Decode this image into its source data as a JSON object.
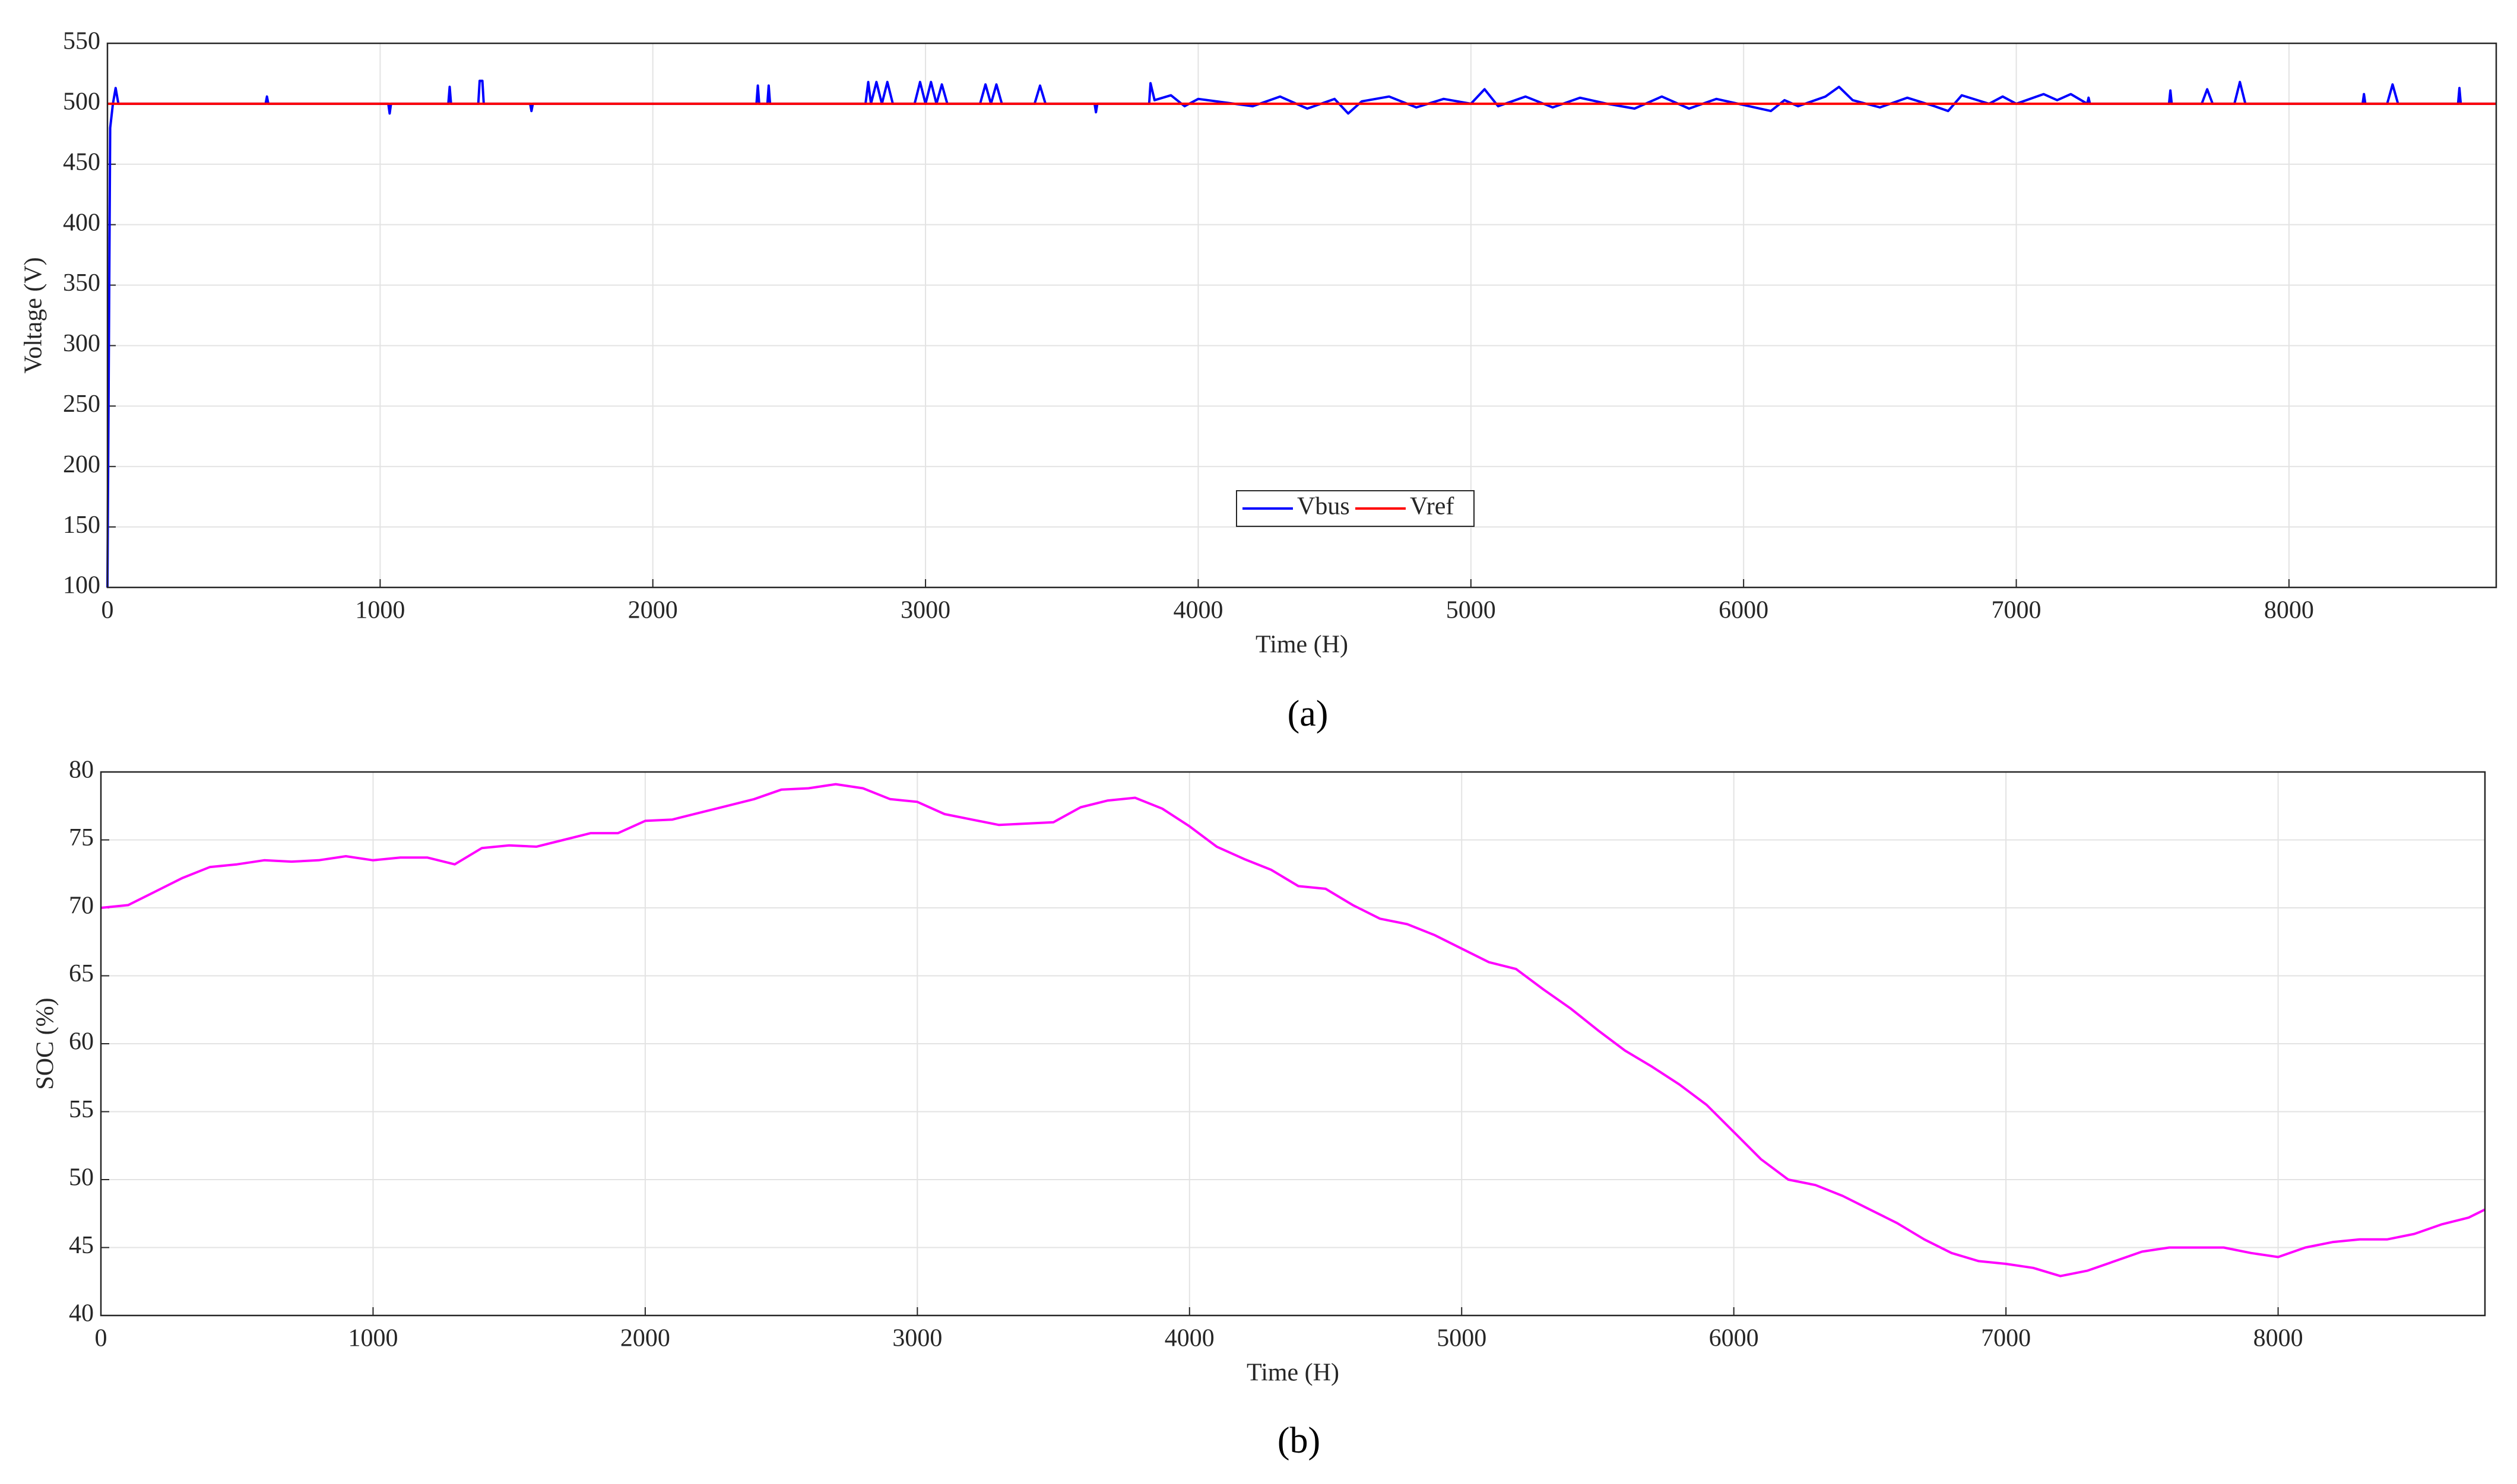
{
  "chart_data": [
    {
      "type": "line",
      "caption": "(a)",
      "xlabel": "Time (H)",
      "ylabel": "Voltage (V)",
      "xlim": [
        0,
        8760
      ],
      "ylim": [
        100,
        550
      ],
      "xticks": [
        0,
        1000,
        2000,
        3000,
        4000,
        5000,
        6000,
        7000,
        8000
      ],
      "yticks": [
        100,
        150,
        200,
        250,
        300,
        350,
        400,
        450,
        500,
        550
      ],
      "grid": true,
      "legend": "lower center",
      "series": [
        {
          "name": "Vbus",
          "color": "#0000ff",
          "x": [
            0,
            10,
            20,
            30,
            40,
            580,
            585,
            590,
            1030,
            1035,
            1040,
            1250,
            1255,
            1260,
            1360,
            1365,
            1375,
            1380,
            1550,
            1555,
            1560,
            2380,
            2385,
            2390,
            2420,
            2425,
            2430,
            2780,
            2790,
            2800,
            2820,
            2840,
            2860,
            2880,
            2960,
            2980,
            3000,
            3020,
            3040,
            3060,
            3080,
            3200,
            3220,
            3240,
            3260,
            3280,
            3400,
            3420,
            3440,
            3620,
            3625,
            3630,
            3820,
            3825,
            3840,
            3900,
            3950,
            4000,
            4100,
            4200,
            4300,
            4400,
            4500,
            4550,
            4600,
            4700,
            4800,
            4900,
            5000,
            5050,
            5100,
            5200,
            5300,
            5400,
            5500,
            5600,
            5700,
            5800,
            5900,
            6000,
            6100,
            6150,
            6200,
            6300,
            6350,
            6400,
            6500,
            6600,
            6700,
            6750,
            6800,
            6900,
            6950,
            7000,
            7100,
            7150,
            7200,
            7260,
            7265,
            7270,
            7560,
            7565,
            7570,
            7680,
            7700,
            7720,
            7800,
            7820,
            7840,
            8270,
            8275,
            8280,
            8360,
            8380,
            8400,
            8620,
            8625,
            8630,
            8760
          ],
          "values": [
            100,
            480,
            500,
            513,
            500,
            500,
            506,
            500,
            500,
            492,
            500,
            500,
            514,
            500,
            500,
            519,
            519,
            500,
            500,
            494,
            500,
            500,
            515,
            500,
            500,
            515,
            500,
            500,
            518,
            500,
            518,
            500,
            518,
            500,
            500,
            518,
            500,
            518,
            500,
            516,
            500,
            500,
            516,
            500,
            516,
            500,
            500,
            515,
            500,
            500,
            493,
            500,
            500,
            517,
            503,
            507,
            498,
            504,
            501,
            498,
            506,
            496,
            504,
            492,
            502,
            506,
            497,
            504,
            500,
            512,
            498,
            506,
            497,
            505,
            500,
            496,
            506,
            496,
            504,
            499,
            494,
            503,
            498,
            506,
            514,
            503,
            497,
            505,
            498,
            494,
            507,
            500,
            506,
            500,
            508,
            503,
            508,
            500,
            505,
            500,
            500,
            511,
            500,
            500,
            512,
            500,
            500,
            518,
            500,
            500,
            508,
            500,
            500,
            516,
            500,
            500,
            513,
            500,
            500
          ]
        },
        {
          "name": "Vref",
          "color": "#ff0000",
          "x": [
            0,
            8760
          ],
          "values": [
            500,
            500
          ]
        }
      ]
    },
    {
      "type": "line",
      "caption": "(b)",
      "xlabel": "Time (H)",
      "ylabel": "SOC (%)",
      "xlim": [
        0,
        8760
      ],
      "ylim": [
        40,
        80
      ],
      "xticks": [
        0,
        1000,
        2000,
        3000,
        4000,
        5000,
        6000,
        7000,
        8000
      ],
      "yticks": [
        40,
        45,
        50,
        55,
        60,
        65,
        70,
        75,
        80
      ],
      "grid": true,
      "series": [
        {
          "color": "#ff00ff",
          "x": [
            0,
            100,
            200,
            300,
            400,
            500,
            600,
            700,
            800,
            900,
            1000,
            1100,
            1200,
            1300,
            1400,
            1500,
            1600,
            1700,
            1800,
            1900,
            2000,
            2100,
            2200,
            2300,
            2400,
            2500,
            2600,
            2700,
            2800,
            2900,
            3000,
            3100,
            3200,
            3300,
            3400,
            3500,
            3600,
            3700,
            3800,
            3900,
            4000,
            4100,
            4200,
            4300,
            4400,
            4500,
            4600,
            4700,
            4800,
            4900,
            5000,
            5100,
            5200,
            5300,
            5400,
            5500,
            5600,
            5700,
            5800,
            5900,
            6000,
            6100,
            6200,
            6300,
            6400,
            6500,
            6600,
            6700,
            6800,
            6900,
            7000,
            7100,
            7200,
            7300,
            7400,
            7500,
            7600,
            7700,
            7800,
            7900,
            8000,
            8100,
            8200,
            8300,
            8400,
            8500,
            8600,
            8700,
            8760
          ],
          "values": [
            70,
            70.2,
            71.2,
            72.2,
            73,
            73.2,
            73.5,
            73.4,
            73.5,
            73.8,
            73.5,
            73.7,
            73.7,
            73.2,
            74.4,
            74.6,
            74.5,
            75,
            75.5,
            75.5,
            76.4,
            76.5,
            77,
            77.5,
            78,
            78.7,
            78.8,
            79.1,
            78.8,
            78,
            77.8,
            76.9,
            76.5,
            76.1,
            76.2,
            76.3,
            77.4,
            77.9,
            78.1,
            77.3,
            76,
            74.5,
            73.6,
            72.8,
            71.6,
            71.4,
            70.2,
            69.2,
            68.8,
            68,
            67,
            66,
            65.5,
            64,
            62.6,
            61,
            59.5,
            58.3,
            57,
            55.5,
            53.5,
            51.5,
            50,
            49.6,
            48.8,
            47.8,
            46.8,
            45.6,
            44.6,
            44,
            43.8,
            43.5,
            42.9,
            43.3,
            44,
            44.7,
            45,
            45,
            45,
            44.6,
            44.3,
            45,
            45.4,
            45.6,
            45.6,
            46,
            46.7,
            47.2,
            47.8
          ]
        }
      ]
    }
  ]
}
